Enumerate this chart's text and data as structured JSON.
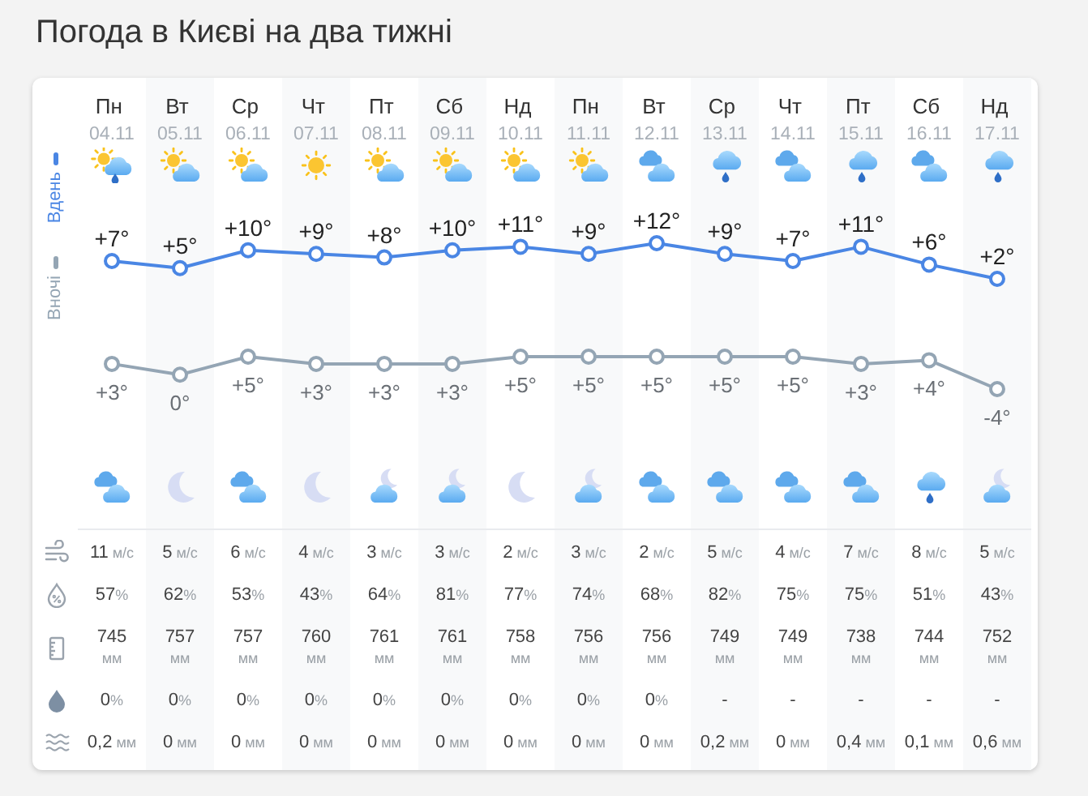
{
  "chart_data": [
    {
      "type": "line",
      "title": "Погода в Києві на два тижні",
      "categories": [
        "Пн 04.11",
        "Вт 05.11",
        "Ср 06.11",
        "Чт 07.11",
        "Пт 08.11",
        "Сб 09.11",
        "Нд 10.11",
        "Пн 11.11",
        "Вт 12.11",
        "Ср 13.11",
        "Чт 14.11",
        "Пт 15.11",
        "Сб 16.11",
        "Нд 17.11"
      ],
      "series": [
        {
          "name": "Вдень",
          "color": "#4a86e4",
          "values": [
            7,
            5,
            10,
            9,
            8,
            10,
            11,
            9,
            12,
            9,
            7,
            11,
            6,
            2
          ],
          "value_labels": [
            "+7°",
            "+5°",
            "+10°",
            "+9°",
            "+8°",
            "+10°",
            "+11°",
            "+9°",
            "+12°",
            "+9°",
            "+7°",
            "+11°",
            "+6°",
            "+2°"
          ]
        }
      ],
      "tick_labels": "x",
      "legend": "left",
      "marker": "circle"
    },
    {
      "type": "line",
      "categories": [
        null,
        null,
        null,
        null,
        null,
        null,
        null,
        null,
        null,
        null,
        null,
        null,
        null,
        null
      ],
      "series": [
        {
          "name": "Вночі",
          "color": "#94a5b4",
          "values": [
            3,
            0,
            5,
            3,
            3,
            3,
            5,
            5,
            5,
            5,
            5,
            3,
            4,
            -4
          ],
          "value_labels": [
            "+3°",
            "0°",
            "+5°",
            "+3°",
            "+3°",
            "+3°",
            "+5°",
            "+5°",
            "+5°",
            "+5°",
            "+5°",
            "+3°",
            "+4°",
            "-4°"
          ]
        }
      ],
      "tick_labels": false,
      "legend": "left",
      "marker": "circle"
    },
    {
      "type": "other",
      "annotations": [
        "11 м/с",
        "5 м/с",
        "6 м/с",
        "4 м/с",
        "3 м/с",
        "3 м/с",
        "2 м/с",
        "3 м/с",
        "2 м/с",
        "5 м/с",
        "4 м/с",
        "7 м/с",
        "8 м/с",
        "5 м/с",
        "57%",
        "62%",
        "53%",
        "43%",
        "64%",
        "81%",
        "77%",
        "74%",
        "68%",
        "82%",
        "75%",
        "75%",
        "51%",
        "43%",
        "745 мм",
        "757 мм",
        "757 мм",
        "760 мм",
        "761 мм",
        "761 мм",
        "758 мм",
        "756 мм",
        "756 мм",
        "749 мм",
        "749 мм",
        "738 мм",
        "744 мм",
        "752 мм",
        "0%",
        "0%",
        "0%",
        "0%",
        "0%",
        "0%",
        "0%",
        "0%",
        "0%",
        "-",
        "-",
        "-",
        "-",
        "-",
        "0,2 мм",
        "0 мм",
        "0 мм",
        "0 мм",
        "0 мм",
        "0 мм",
        "0 мм",
        "0 мм",
        "0 мм",
        "0,2 мм",
        "0 мм",
        "0,4 мм",
        "0,1 мм",
        "0,6 мм"
      ]
    }
  ]
}
